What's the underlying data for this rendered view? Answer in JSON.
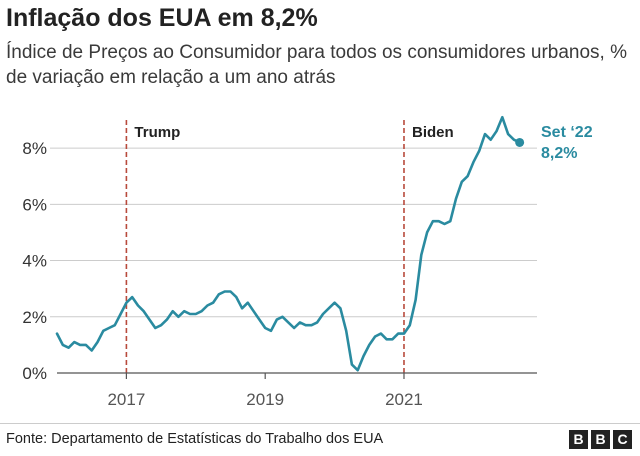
{
  "title": "Inflação dos EUA em 8,2%",
  "subtitle": "Índice de Preços ao Consumidor para todos os consumidores urbanos, % de variação em relação a um ano atrás",
  "source": "Fonte: Departamento de Estatísticas do Trabalho dos EUA",
  "logo": [
    "B",
    "B",
    "C"
  ],
  "colors": {
    "line": "#2a8ba0",
    "marker": "#b84a3c",
    "grid": "#cccccc",
    "axis": "#555555"
  },
  "chart_data": {
    "type": "line",
    "title": "Inflação dos EUA em 8,2%",
    "xlabel": "",
    "ylabel": "",
    "ylim": [
      0,
      9
    ],
    "xlim": [
      "2016-01",
      "2022-12"
    ],
    "yticks": [
      0,
      2,
      4,
      6,
      8
    ],
    "ytick_labels": [
      "0%",
      "2%",
      "4%",
      "6%",
      "8%"
    ],
    "xticks": [
      "2017-01",
      "2019-01",
      "2021-01"
    ],
    "xtick_labels": [
      "2017",
      "2019",
      "2021"
    ],
    "grid": "horizontal",
    "markers": [
      {
        "x": "2017-01",
        "label": "Trump"
      },
      {
        "x": "2021-01",
        "label": "Biden"
      }
    ],
    "end_label": [
      "Set ‘22",
      "8,2%"
    ],
    "series": [
      {
        "x": [
          "2016-01",
          "2016-02",
          "2016-03",
          "2016-04",
          "2016-05",
          "2016-06",
          "2016-07",
          "2016-08",
          "2016-09",
          "2016-10",
          "2016-11",
          "2016-12",
          "2017-01",
          "2017-02",
          "2017-03",
          "2017-04",
          "2017-05",
          "2017-06",
          "2017-07",
          "2017-08",
          "2017-09",
          "2017-10",
          "2017-11",
          "2017-12",
          "2018-01",
          "2018-02",
          "2018-03",
          "2018-04",
          "2018-05",
          "2018-06",
          "2018-07",
          "2018-08",
          "2018-09",
          "2018-10",
          "2018-11",
          "2018-12",
          "2019-01",
          "2019-02",
          "2019-03",
          "2019-04",
          "2019-05",
          "2019-06",
          "2019-07",
          "2019-08",
          "2019-09",
          "2019-10",
          "2019-11",
          "2019-12",
          "2020-01",
          "2020-02",
          "2020-03",
          "2020-04",
          "2020-05",
          "2020-06",
          "2020-07",
          "2020-08",
          "2020-09",
          "2020-10",
          "2020-11",
          "2020-12",
          "2021-01",
          "2021-02",
          "2021-03",
          "2021-04",
          "2021-05",
          "2021-06",
          "2021-07",
          "2021-08",
          "2021-09",
          "2021-10",
          "2021-11",
          "2021-12",
          "2022-01",
          "2022-02",
          "2022-03",
          "2022-04",
          "2022-05",
          "2022-06",
          "2022-07",
          "2022-08",
          "2022-09"
        ],
        "values": [
          1.4,
          1.0,
          0.9,
          1.1,
          1.0,
          1.0,
          0.8,
          1.1,
          1.5,
          1.6,
          1.7,
          2.1,
          2.5,
          2.7,
          2.4,
          2.2,
          1.9,
          1.6,
          1.7,
          1.9,
          2.2,
          2.0,
          2.2,
          2.1,
          2.1,
          2.2,
          2.4,
          2.5,
          2.8,
          2.9,
          2.9,
          2.7,
          2.3,
          2.5,
          2.2,
          1.9,
          1.6,
          1.5,
          1.9,
          2.0,
          1.8,
          1.6,
          1.8,
          1.7,
          1.7,
          1.8,
          2.1,
          2.3,
          2.5,
          2.3,
          1.5,
          0.3,
          0.1,
          0.6,
          1.0,
          1.3,
          1.4,
          1.2,
          1.2,
          1.4,
          1.4,
          1.7,
          2.6,
          4.2,
          5.0,
          5.4,
          5.4,
          5.3,
          5.4,
          6.2,
          6.8,
          7.0,
          7.5,
          7.9,
          8.5,
          8.3,
          8.6,
          9.1,
          8.5,
          8.3,
          8.2
        ]
      }
    ]
  }
}
